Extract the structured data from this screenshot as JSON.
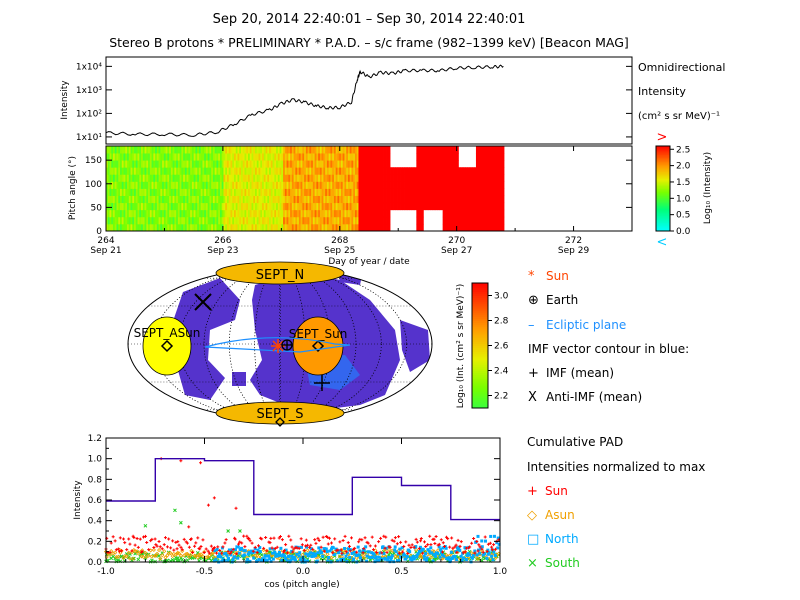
{
  "header": {
    "time_range": "Sep 20, 2014 22:40:01 – Sep 30, 2014 22:40:01",
    "title": "Stereo B protons * PRELIMINARY * P.A.D. – s/c frame (982–1399 keV)  [Beacon MAG]"
  },
  "colors": {
    "trace": "#000000",
    "sun": "#ff0000",
    "asun": "#f0a000",
    "north": "#00aaff",
    "south": "#22cc22",
    "imf_contour": "#0b6fd0",
    "ecliptic": "#1e90ff",
    "sept_fill": "#f5b800",
    "sept_sun_fill": "#ff9900",
    "sept_asun_fill": "#ffff00",
    "contour_fill": "#5533cc",
    "cum_line": "#3300aa",
    "gt_marker": "#ff0000",
    "lt_marker": "#00ccff"
  },
  "panels": {
    "omni": {
      "ylabel": "Intensity",
      "yticks": [
        "1x10¹",
        "1x10²",
        "1x10³",
        "1x10⁴"
      ],
      "label": [
        "Omnidirectional",
        "Intensity",
        "(cm² s sr MeV)⁻¹"
      ]
    },
    "pad": {
      "ylabel": "Pitch angle (°)",
      "yticks": [
        "0",
        "50",
        "100",
        "150"
      ],
      "colorbar_label": "Log₁₀ (Intensity)",
      "colorbar_ticks": [
        "0.0",
        "0.5",
        "1.0",
        "1.5",
        "2.0",
        "2.5"
      ],
      "gt": ">",
      "lt": "<"
    },
    "xaxis": {
      "doy_ticks": [
        "264",
        "266",
        "268",
        "270",
        "272"
      ],
      "date_ticks": [
        "Sep 21",
        "Sep 23",
        "Sep 25",
        "Sep 27",
        "Sep 29"
      ],
      "label": "Day of year / date"
    },
    "map": {
      "sept_n": "SEPT_N",
      "sept_s": "SEPT_S",
      "sept_sun": "SEPT_Sun",
      "sept_asun": "SEPT_ASun",
      "colorbar_label": "Log₁₀ (Int. (cm² s sr MeV)⁻¹)",
      "colorbar_ticks": [
        "2.2",
        "2.4",
        "2.6",
        "2.8",
        "3.0"
      ]
    },
    "legend": {
      "items": [
        {
          "glyph": "*",
          "text": "Sun",
          "color": "#ff4400"
        },
        {
          "glyph": "⊕",
          "text": "Earth",
          "color": "#000000"
        },
        {
          "glyph": "–",
          "text": "Ecliptic plane",
          "color": "#1e90ff"
        },
        {
          "glyph": "",
          "text": "IMF vector contour in blue:",
          "color": "#000000"
        },
        {
          "glyph": "+",
          "text": "IMF (mean)",
          "color": "#000000"
        },
        {
          "glyph": "X",
          "text": "Anti-IMF (mean)",
          "color": "#000000"
        }
      ]
    },
    "cumulative": {
      "title": [
        "Cumulative PAD",
        "Intensities normalized to max"
      ],
      "legend": [
        {
          "glyph": "+",
          "text": "Sun",
          "color": "#ff0000"
        },
        {
          "glyph": "◇",
          "text": "Asun",
          "color": "#f0a000"
        },
        {
          "glyph": "□",
          "text": "North",
          "color": "#00aaff"
        },
        {
          "glyph": "×",
          "text": "South",
          "color": "#22cc22"
        }
      ]
    }
  },
  "chart_data": [
    {
      "type": "line",
      "id": "omnidirectional",
      "xlabel": "Day of year / date",
      "ylabel": "Intensity",
      "yscale": "log",
      "xlim": [
        264,
        273
      ],
      "ylim": [
        5,
        25000
      ],
      "x": [
        264.0,
        264.5,
        265.0,
        265.5,
        265.9,
        266.2,
        266.5,
        266.8,
        267.0,
        267.2,
        267.4,
        267.6,
        267.8,
        268.0,
        268.2,
        268.3,
        268.35,
        268.5,
        268.7,
        268.9,
        269.1,
        269.4,
        269.7,
        270.0,
        270.3,
        270.6,
        270.8
      ],
      "y": [
        15,
        13,
        13,
        12,
        16,
        35,
        90,
        140,
        260,
        380,
        300,
        210,
        170,
        180,
        300,
        2800,
        6000,
        3500,
        5500,
        5000,
        6500,
        6800,
        6600,
        8500,
        9000,
        9500,
        10000
      ]
    },
    {
      "type": "heatmap",
      "id": "pitch_angle_distribution",
      "xlabel": "Day of year / date",
      "ylabel": "Pitch angle (°)",
      "xlim": [
        264,
        273
      ],
      "ylim": [
        0,
        180
      ],
      "colorbar": {
        "label": "Log₁₀ (Intensity)",
        "range": [
          0.0,
          2.6
        ]
      },
      "segments": [
        {
          "x_start": 264.0,
          "x_end": 266.0,
          "low": 0.9,
          "high": 1.5
        },
        {
          "x_start": 266.0,
          "x_end": 267.0,
          "low": 1.3,
          "high": 1.8
        },
        {
          "x_start": 267.0,
          "x_end": 268.3,
          "low": 1.6,
          "high": 2.2
        },
        {
          "x_start": 268.3,
          "x_end": 270.8,
          "low": 2.6,
          "high": 2.6
        }
      ]
    },
    {
      "type": "line",
      "id": "cumulative_pad",
      "title": "Cumulative PAD",
      "xlabel": "cos (pitch angle)",
      "ylabel": "Intensity",
      "xlim": [
        -1.0,
        1.0
      ],
      "ylim": [
        0.0,
        1.2
      ],
      "step_x": [
        -1.0,
        -0.75,
        -0.75,
        -0.5,
        -0.5,
        -0.25,
        -0.25,
        0.25,
        0.25,
        0.5,
        0.5,
        0.75,
        0.75,
        1.0
      ],
      "step_y": [
        0.59,
        0.59,
        1.0,
        1.0,
        0.98,
        0.98,
        0.46,
        0.46,
        0.82,
        0.82,
        0.74,
        0.74,
        0.41,
        0.41
      ],
      "scatter": [
        {
          "name": "Sun",
          "marker": "+",
          "band": [
            0.08,
            0.25
          ]
        },
        {
          "name": "Asun",
          "marker": "◇",
          "band": [
            0.03,
            0.12
          ]
        },
        {
          "name": "North",
          "marker": "□",
          "band": [
            0.0,
            0.15
          ]
        },
        {
          "name": "South",
          "marker": "×",
          "band": [
            0.0,
            0.1
          ]
        }
      ]
    }
  ]
}
